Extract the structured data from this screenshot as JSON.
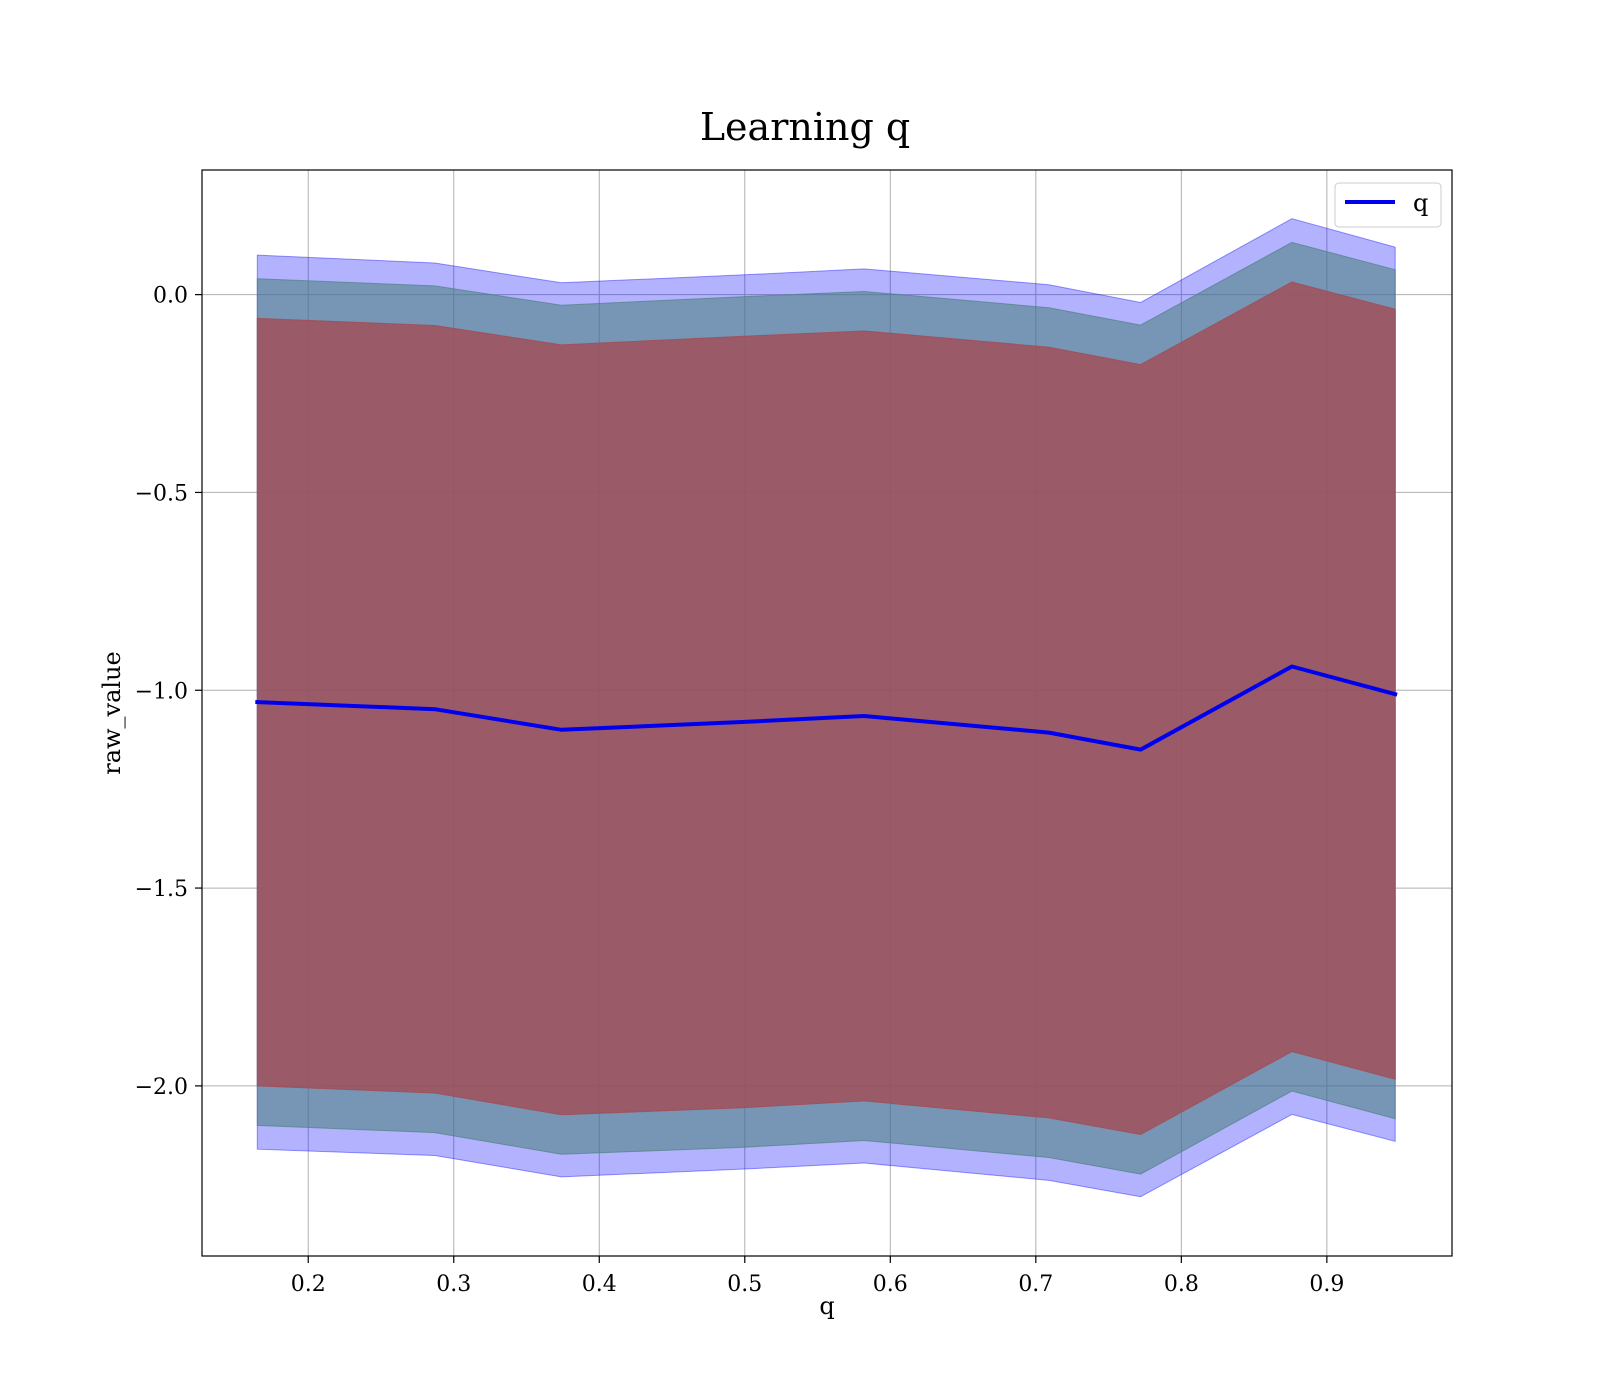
{
  "chart_data": {
    "type": "line",
    "title": "Learning q",
    "xlabel": "q",
    "ylabel": "raw_value",
    "xlim": [
      0.127,
      0.986
    ],
    "ylim": [
      -2.43,
      0.315
    ],
    "xticks": [
      0.2,
      0.3,
      0.4,
      0.5,
      0.6,
      0.7,
      0.8,
      0.9
    ],
    "xtick_labels": [
      "0.2",
      "0.3",
      "0.4",
      "0.5",
      "0.6",
      "0.7",
      "0.8",
      "0.9"
    ],
    "yticks": [
      0.0,
      -0.5,
      -1.0,
      -1.5,
      -2.0
    ],
    "ytick_labels": [
      "0.0",
      "−0.5",
      "−1.0",
      "−1.5",
      "−2.0"
    ],
    "grid": true,
    "legend_position": "top-right",
    "x": [
      0.165,
      0.287,
      0.374,
      0.5,
      0.582,
      0.709,
      0.772,
      0.876,
      0.947
    ],
    "series": [
      {
        "name": "q",
        "color": "#0000ee",
        "values": [
          -1.03,
          -1.048,
          -1.1,
          -1.08,
          -1.065,
          -1.107,
          -1.15,
          -0.94,
          -1.01
        ]
      }
    ],
    "bands": [
      {
        "color": "#0000ff",
        "opacity": 0.3,
        "upper": [
          0.1,
          0.08,
          0.03,
          0.05,
          0.065,
          0.025,
          -0.02,
          0.192,
          0.12
        ],
        "lower": [
          -2.16,
          -2.176,
          -2.23,
          -2.21,
          -2.195,
          -2.239,
          -2.28,
          -2.072,
          -2.14
        ]
      },
      {
        "color": "#508282",
        "opacity": 0.6,
        "upper": [
          0.04,
          0.022,
          -0.027,
          -0.005,
          0.008,
          -0.033,
          -0.077,
          0.132,
          0.063
        ],
        "lower": [
          -2.1,
          -2.118,
          -2.173,
          -2.155,
          -2.138,
          -2.181,
          -2.223,
          -2.013,
          -2.083
        ]
      },
      {
        "color": "#a0505a",
        "opacity": 0.85,
        "upper": [
          -0.06,
          -0.078,
          -0.127,
          -0.105,
          -0.092,
          -0.133,
          -0.177,
          0.032,
          -0.037
        ],
        "lower": [
          -2.0,
          -2.018,
          -2.073,
          -2.055,
          -2.038,
          -2.081,
          -2.123,
          -1.913,
          -1.983
        ]
      }
    ]
  }
}
